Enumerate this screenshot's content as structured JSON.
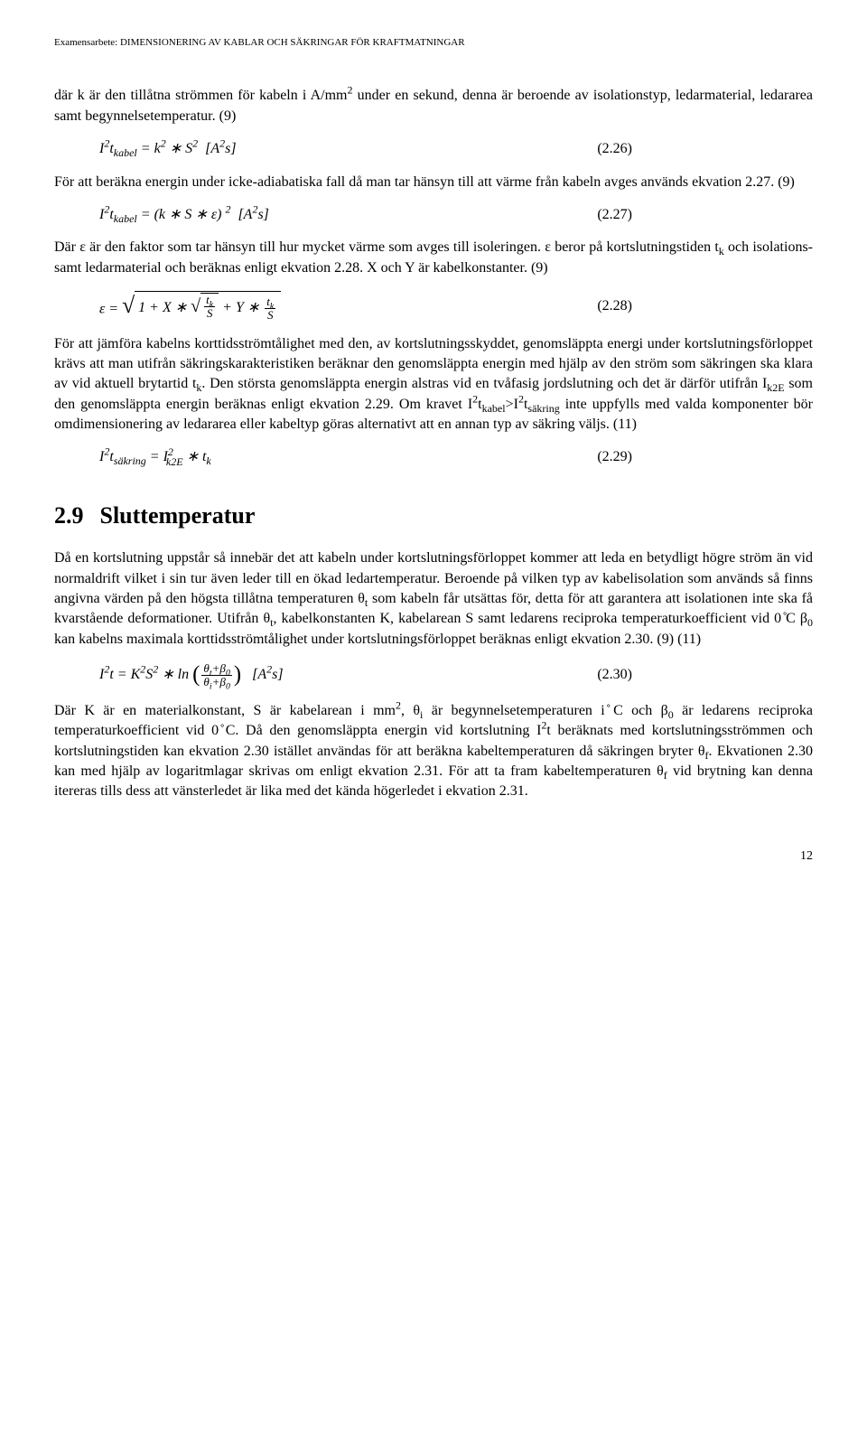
{
  "header": "Examensarbete: DIMENSIONERING AV KABLAR OCH SÄKRINGAR FÖR KRAFTMATNINGAR",
  "p1a": "där k är den tillåtna strömmen för kabeln i A/mm",
  "p1sup": "2",
  "p1b": " under en sekund, denna är beroende av isolationstyp, ledarmaterial, ledararea samt begynnelsetemperatur. (9)",
  "eq226_num": "(2.26)",
  "p2": "För att beräkna energin under icke-adiabatiska fall då man tar hänsyn till att värme från kabeln avges används ekvation 2.27. (9)",
  "eq227_num": "(2.27)",
  "p3a": "Där ε är den faktor som tar hänsyn till hur mycket värme som avges till isoleringen. ε beror på kortslutningstiden t",
  "p3sub": "k",
  "p3b": " och isolations- samt ledarmaterial och beräknas enligt ekvation 2.28. X och Y är kabelkonstanter. (9)",
  "eq228_num": "(2.28)",
  "p4a": "För att jämföra kabelns korttidsströmtålighet med den, av kortslutningsskyddet, genomsläppta energi under kortslutningsförloppet krävs att man utifrån säkringskarakteristiken beräknar den genomsläppta energin med hjälp av den ström som säkringen ska klara av vid aktuell brytartid t",
  "p4sub1": "k",
  "p4b": ". Den största genomsläppta energin alstras vid en tvåfasig jordslutning och det är därför utifrån I",
  "p4sub2": "k2E",
  "p4c": " som den genomsläppta energin beräknas enligt ekvation 2.29. Om kravet I",
  "p4sup1": "2",
  "p4d": "t",
  "p4sub3": "kabel",
  "p4e": ">I",
  "p4sup2": "2",
  "p4f": "t",
  "p4sub4": "säkring",
  "p4g": " inte uppfylls med valda komponenter bör omdimensionering av ledararea eller kabeltyp göras alternativt att en annan typ av säkring väljs. (11)",
  "eq229_num": "(2.29)",
  "section_num": "2.9",
  "section_title": "Sluttemperatur",
  "p5a": "Då en kortslutning uppstår så innebär det att kabeln under kortslutningsförloppet kommer att leda en betydligt högre ström än vid normaldrift vilket i sin tur även leder till en ökad ledartemperatur. Beroende på vilken typ av kabelisolation som används så finns angivna värden på den högsta tillåtna temperaturen θ",
  "p5sub1": "t",
  "p5b": " som kabeln får utsättas för, detta för att garantera att isolationen inte ska få kvarstående deformationer. Utifrån θ",
  "p5sub2": "t",
  "p5c": ", kabelkonstanten K, kabelarean S samt ledarens reciproka temperaturkoefficient vid 0 ̊C β",
  "p5sub3": "0",
  "p5d": " kan kabelns maximala korttidsströmtålighet under kortslutningsförloppet beräknas enligt ekvation 2.30. (9) (11)",
  "eq230_num": "(2.30)",
  "p6a": "Där K är en materialkonstant, S är kabelarean i mm",
  "p6sup1": "2",
  "p6b": ", θ",
  "p6sub1": "i",
  "p6c": " är begynnelsetemperaturen i ̊C och β",
  "p6sub2": "0",
  "p6d": " är ledarens reciproka temperaturkoefficient vid 0 ̊C. Då den genomsläppta energin vid kortslutning I",
  "p6sup2": "2",
  "p6e": "t beräknats med kortslutningsströmmen och kortslutningstiden kan ekvation 2.30 istället användas för att beräkna kabeltemperaturen då säkringen bryter θ",
  "p6sub3": "f",
  "p6f": ". Ekvationen 2.30 kan med hjälp av logaritmlagar skrivas om enligt ekvation 2.31. För att ta fram kabeltemperaturen θ",
  "p6sub4": "f",
  "p6g": " vid brytning kan denna itereras tills dess att vänsterledet är lika med det kända högerledet i ekvation 2.31.",
  "page_num": "12"
}
